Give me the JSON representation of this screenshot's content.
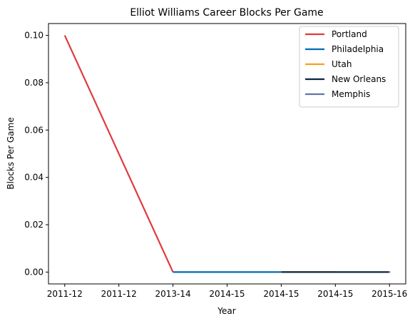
{
  "chart_data": {
    "type": "line",
    "title": "Elliot Williams Career Blocks Per Game",
    "xlabel": "Year",
    "ylabel": "Blocks Per Game",
    "x_tick_labels": [
      "2011-12",
      "2011-12",
      "2013-14",
      "2014-15",
      "2014-15",
      "2014-15",
      "2015-16"
    ],
    "y_ticks": [
      0.0,
      0.02,
      0.04,
      0.06,
      0.08,
      0.1
    ],
    "y_tick_labels": [
      "0.00",
      "0.02",
      "0.04",
      "0.06",
      "0.08",
      "0.10"
    ],
    "ylim": [
      -0.005,
      0.105
    ],
    "xlim": [
      -0.3,
      6.3
    ],
    "grid": false,
    "legend_position": "top-right",
    "series": [
      {
        "name": "Portland",
        "color": "#e03a3e",
        "x": [
          0,
          2
        ],
        "y": [
          0.1,
          0.0
        ]
      },
      {
        "name": "Philadelphia",
        "color": "#006bb6",
        "x": [
          2,
          4
        ],
        "y": [
          0.0,
          0.0
        ]
      },
      {
        "name": "Utah",
        "color": "#f9a01b",
        "x": [
          4,
          5
        ],
        "y": [
          0.0,
          0.0
        ]
      },
      {
        "name": "New Orleans",
        "color": "#0c2340",
        "x": [
          4,
          6
        ],
        "y": [
          0.0,
          0.0
        ]
      },
      {
        "name": "Memphis",
        "color": "#5d76a9",
        "x": [
          6
        ],
        "y": [
          0.0
        ]
      }
    ]
  }
}
